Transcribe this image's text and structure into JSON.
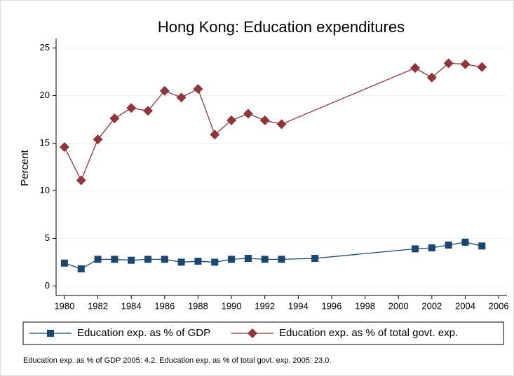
{
  "chart_data": {
    "type": "line",
    "title": "Hong Kong: Education expenditures",
    "y_label": "Percent",
    "note": "Education exp. as % of GDP 2005: 4.2. Education exp. as % of total govt. exp. 2005: 23.0.",
    "series": [
      {
        "name": "Education exp. as % of GDP",
        "color": "#1a476f",
        "marker": "square",
        "x": [
          1980,
          1981,
          1982,
          1983,
          1984,
          1985,
          1986,
          1987,
          1988,
          1989,
          1990,
          1991,
          1992,
          1993,
          1995,
          2001,
          2002,
          2003,
          2004,
          2005
        ],
        "values": [
          2.4,
          1.8,
          2.8,
          2.8,
          2.7,
          2.8,
          2.8,
          2.5,
          2.6,
          2.5,
          2.8,
          2.9,
          2.8,
          2.8,
          2.9,
          3.9,
          4.0,
          4.3,
          4.6,
          4.2
        ]
      },
      {
        "name": "Education exp. as % of total govt. exp.",
        "color": "#90353b",
        "marker": "diamond",
        "x": [
          1980,
          1981,
          1982,
          1983,
          1984,
          1985,
          1986,
          1987,
          1988,
          1989,
          1990,
          1991,
          1992,
          1993,
          2001,
          2002,
          2003,
          2004,
          2005
        ],
        "values": [
          14.6,
          11.1,
          15.4,
          17.6,
          18.7,
          18.4,
          20.5,
          19.8,
          20.7,
          15.9,
          17.4,
          18.1,
          17.4,
          17.0,
          22.9,
          21.9,
          23.4,
          23.3,
          23.0
        ]
      }
    ],
    "xlim": [
      1979.5,
      2006.5
    ],
    "xticks": [
      1980,
      1982,
      1984,
      1986,
      1988,
      1990,
      1992,
      1994,
      1996,
      1998,
      2000,
      2002,
      2004,
      2006
    ],
    "ylim": [
      -1,
      26
    ],
    "yticks": [
      0,
      5,
      10,
      15,
      20,
      25
    ],
    "grid": true
  }
}
